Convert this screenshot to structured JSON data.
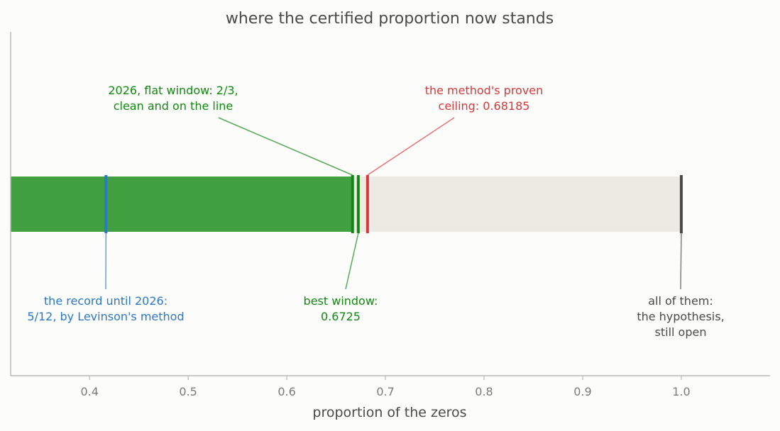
{
  "chart_data": {
    "type": "bar",
    "title": "where the certified proportion now stands",
    "xlabel": "proportion of the zeros",
    "ylabel": "",
    "xlim": [
      0.32,
      1.09
    ],
    "xticks": [
      "0.4",
      "0.5",
      "0.6",
      "0.7",
      "0.8",
      "0.9",
      "1.0"
    ],
    "grid": false,
    "bar": {
      "filled_to": 0.6667,
      "track_to": 1.0
    },
    "markers": [
      {
        "value": 0.41667,
        "color": "#2b78c5"
      },
      {
        "value": 0.66667,
        "color": "#118811"
      },
      {
        "value": 0.6725,
        "color": "#118811"
      },
      {
        "value": 0.68185,
        "color": "#d9383a"
      },
      {
        "value": 1.0,
        "color": "#4d4843"
      }
    ],
    "annotations": [
      {
        "lines": [
          "the record until 2026:",
          "5/12, by Levinson's method"
        ],
        "value": 0.41667,
        "color": "#2b78c5",
        "side": "below"
      },
      {
        "lines": [
          "2026, flat window: 2/3,",
          "clean and on the line"
        ],
        "value": 0.66667,
        "color": "#118811",
        "side": "above"
      },
      {
        "lines": [
          "best window:",
          "0.6725"
        ],
        "value": 0.6725,
        "color": "#118811",
        "side": "below"
      },
      {
        "lines": [
          "the method's proven",
          "ceiling: 0.68185"
        ],
        "value": 0.68185,
        "color": "#d9383a",
        "side": "above"
      },
      {
        "lines": [
          "all of them:",
          "the hypothesis,",
          "still open"
        ],
        "value": 1.0,
        "color": "#4a4a4a",
        "side": "below"
      }
    ],
    "colors": {
      "fill": "#40a040",
      "track": "#ede9e3",
      "axis": "#b8b8b8"
    }
  }
}
